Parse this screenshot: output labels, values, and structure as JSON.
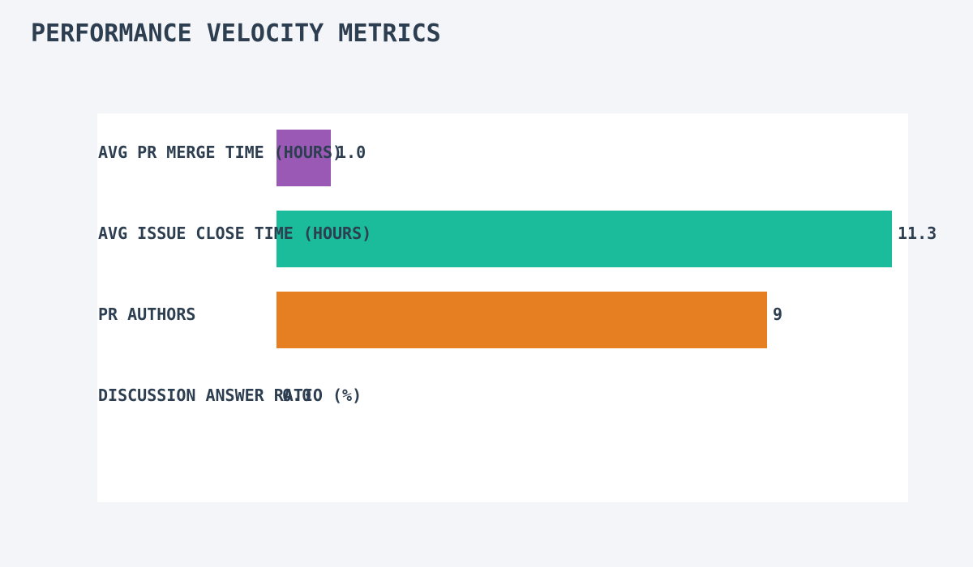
{
  "chart_data": {
    "type": "bar",
    "orientation": "horizontal",
    "title": "PERFORMANCE VELOCITY METRICS",
    "categories": [
      "AVG PR MERGE TIME (HOURS)",
      "AVG ISSUE CLOSE TIME (HOURS)",
      "PR AUTHORS",
      "DISCUSSION ANSWER RATIO (%)"
    ],
    "values": [
      1.0,
      11.3,
      9,
      0.0
    ],
    "value_labels": [
      "1.0",
      "11.3",
      "9",
      "0.0"
    ],
    "bar_colors": [
      "#9b59b6",
      "#1abc9c",
      "#e67e22",
      null
    ],
    "xlim": [
      0,
      11.3
    ],
    "grid": false,
    "legend": false,
    "axes_visible": false,
    "value_label_position": "right-of-bar-end",
    "category_label_position": "overlaid-left-inside-plot"
  },
  "colors": {
    "page_background": "#f3f5f9",
    "plot_background": "#ffffff",
    "text": "#2d3e50"
  }
}
